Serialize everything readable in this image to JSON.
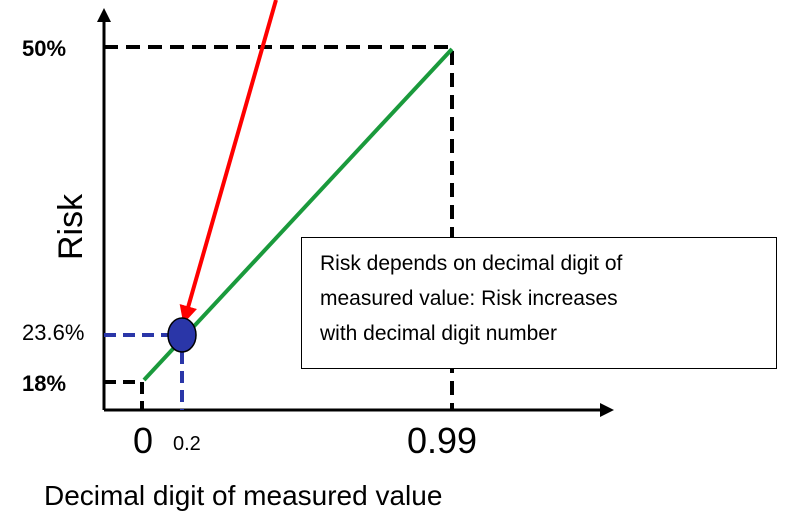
{
  "axes": {
    "x_label": "Decimal digit of measured value",
    "y_label": "Risk",
    "x_ticks": [
      "0",
      "0.2",
      "0.99"
    ],
    "y_ticks": [
      "50%",
      "23.6%",
      "18%"
    ]
  },
  "lines": {
    "risk_line_color": "#1a9a3c",
    "arrow_color": "#ff0000",
    "marker_color": "#2a36a8",
    "dashed_black": "#000000",
    "dashed_blue": "#2a36a8"
  },
  "annotation": {
    "line1": "Risk depends on decimal digit of",
    "line2": "measured value: Risk increases",
    "line3": "with decimal digit number"
  }
}
